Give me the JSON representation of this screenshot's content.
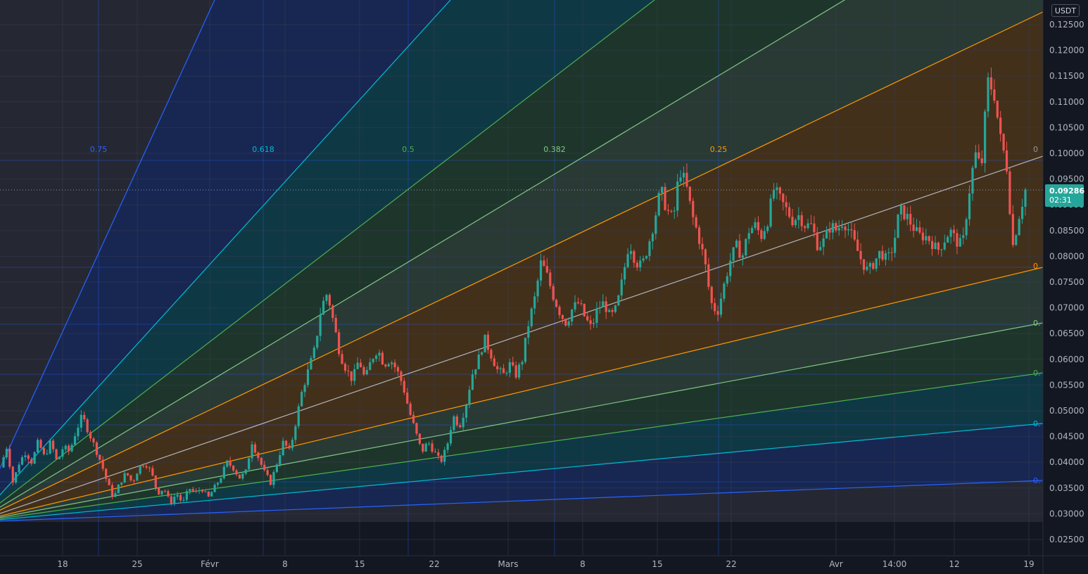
{
  "currency": "USDT",
  "last_price": "0.09286",
  "countdown": "02:31",
  "colors": {
    "background": "#131722",
    "up_candle": "#26a69a",
    "down_candle": "#ef5350",
    "price_badge": "#26a69a",
    "grid": "#2a2e39"
  },
  "chart_data": {
    "type": "candlestick",
    "subtype": "gann-fan-overlay",
    "x_ticks": [
      "18",
      "25",
      "Févr",
      "8",
      "15",
      "22",
      "Mars",
      "8",
      "15",
      "22",
      "Avr",
      "14:00",
      "12",
      "19"
    ],
    "y_ticks": [
      "0.12500",
      "0.12000",
      "0.11500",
      "0.11000",
      "0.10500",
      "0.10000",
      "0.09500",
      "0.09000",
      "0.08500",
      "0.08000",
      "0.07500",
      "0.07000",
      "0.06500",
      "0.06000",
      "0.05500",
      "0.05000",
      "0.04500",
      "0.04000",
      "0.03500",
      "0.03000",
      "0.02500"
    ],
    "ylim": [
      0.0215,
      0.127
    ],
    "fan_levels_upper": [
      {
        "label": "0.75",
        "color": "#2962ff"
      },
      {
        "label": "0.618",
        "color": "#00bcd4"
      },
      {
        "label": "0.5",
        "color": "#4caf50"
      },
      {
        "label": "0.382",
        "color": "#81c784"
      },
      {
        "label": "0.25",
        "color": "#ff9800"
      }
    ],
    "fan_levels_right": [
      {
        "label": "0",
        "color": "#9598a1"
      },
      {
        "label": "0.",
        "color": "#ff9800"
      },
      {
        "label": "0.",
        "color": "#81c784"
      },
      {
        "label": "0.",
        "color": "#4caf50"
      },
      {
        "label": "0.",
        "color": "#00bcd4"
      },
      {
        "label": "0.",
        "color": "#2962ff"
      }
    ],
    "series": [
      {
        "name": "",
        "close_path": [
          [
            0,
            0.039
          ],
          [
            1,
            0.043
          ],
          [
            2,
            0.036
          ],
          [
            3,
            0.04
          ],
          [
            4,
            0.042
          ],
          [
            5,
            0.04
          ],
          [
            6,
            0.044
          ],
          [
            7,
            0.041
          ],
          [
            8,
            0.044
          ],
          [
            9,
            0.04
          ],
          [
            10,
            0.043
          ],
          [
            11,
            0.042
          ],
          [
            12,
            0.046
          ],
          [
            13,
            0.049
          ],
          [
            14,
            0.046
          ],
          [
            15,
            0.043
          ],
          [
            16,
            0.04
          ],
          [
            17,
            0.036
          ],
          [
            18,
            0.033
          ],
          [
            19,
            0.036
          ],
          [
            20,
            0.038
          ],
          [
            21,
            0.036
          ],
          [
            22,
            0.039
          ],
          [
            23,
            0.04
          ],
          [
            24,
            0.038
          ],
          [
            25,
            0.034
          ],
          [
            26,
            0.035
          ],
          [
            27,
            0.032
          ],
          [
            28,
            0.034
          ],
          [
            29,
            0.032
          ],
          [
            30,
            0.035
          ],
          [
            31,
            0.034
          ],
          [
            32,
            0.035
          ],
          [
            33,
            0.033
          ],
          [
            34,
            0.035
          ],
          [
            35,
            0.037
          ],
          [
            36,
            0.04
          ],
          [
            37,
            0.039
          ],
          [
            38,
            0.037
          ],
          [
            39,
            0.038
          ],
          [
            40,
            0.044
          ],
          [
            41,
            0.041
          ],
          [
            42,
            0.038
          ],
          [
            43,
            0.036
          ],
          [
            44,
            0.04
          ],
          [
            45,
            0.044
          ],
          [
            46,
            0.042
          ],
          [
            47,
            0.048
          ],
          [
            48,
            0.054
          ],
          [
            49,
            0.058
          ],
          [
            50,
            0.062
          ],
          [
            51,
            0.07
          ],
          [
            52,
            0.073
          ],
          [
            53,
            0.067
          ],
          [
            54,
            0.061
          ],
          [
            55,
            0.058
          ],
          [
            56,
            0.056
          ],
          [
            57,
            0.06
          ],
          [
            58,
            0.056
          ],
          [
            59,
            0.06
          ],
          [
            60,
            0.062
          ],
          [
            61,
            0.059
          ],
          [
            62,
            0.06
          ],
          [
            63,
            0.058
          ],
          [
            64,
            0.055
          ],
          [
            65,
            0.05
          ],
          [
            66,
            0.046
          ],
          [
            67,
            0.042
          ],
          [
            68,
            0.044
          ],
          [
            69,
            0.042
          ],
          [
            70,
            0.04
          ],
          [
            71,
            0.043
          ],
          [
            72,
            0.049
          ],
          [
            73,
            0.047
          ],
          [
            74,
            0.051
          ],
          [
            75,
            0.057
          ],
          [
            76,
            0.06
          ],
          [
            77,
            0.064
          ],
          [
            78,
            0.061
          ],
          [
            79,
            0.058
          ],
          [
            80,
            0.057
          ],
          [
            81,
            0.059
          ],
          [
            82,
            0.057
          ],
          [
            83,
            0.06
          ],
          [
            84,
            0.067
          ],
          [
            85,
            0.072
          ],
          [
            86,
            0.079
          ],
          [
            87,
            0.076
          ],
          [
            88,
            0.072
          ],
          [
            89,
            0.069
          ],
          [
            90,
            0.067
          ],
          [
            91,
            0.07
          ],
          [
            92,
            0.071
          ],
          [
            93,
            0.068
          ],
          [
            94,
            0.066
          ],
          [
            95,
            0.07
          ],
          [
            96,
            0.071
          ],
          [
            97,
            0.068
          ],
          [
            98,
            0.07
          ],
          [
            99,
            0.076
          ],
          [
            100,
            0.083
          ],
          [
            101,
            0.079
          ],
          [
            102,
            0.078
          ],
          [
            103,
            0.082
          ],
          [
            104,
            0.087
          ],
          [
            105,
            0.093
          ],
          [
            106,
            0.089
          ],
          [
            107,
            0.087
          ],
          [
            108,
            0.097
          ],
          [
            109,
            0.094
          ],
          [
            110,
            0.088
          ],
          [
            111,
            0.084
          ],
          [
            112,
            0.079
          ],
          [
            113,
            0.071
          ],
          [
            114,
            0.069
          ],
          [
            115,
            0.074
          ],
          [
            116,
            0.079
          ],
          [
            117,
            0.082
          ],
          [
            118,
            0.08
          ],
          [
            119,
            0.085
          ],
          [
            120,
            0.086
          ],
          [
            121,
            0.084
          ],
          [
            122,
            0.087
          ],
          [
            123,
            0.093
          ],
          [
            124,
            0.091
          ],
          [
            125,
            0.089
          ],
          [
            126,
            0.087
          ],
          [
            127,
            0.088
          ],
          [
            128,
            0.086
          ],
          [
            129,
            0.086
          ],
          [
            130,
            0.082
          ],
          [
            131,
            0.083
          ],
          [
            132,
            0.086
          ],
          [
            133,
            0.085
          ],
          [
            134,
            0.087
          ],
          [
            135,
            0.085
          ],
          [
            136,
            0.082
          ],
          [
            137,
            0.079
          ],
          [
            138,
            0.077
          ],
          [
            139,
            0.079
          ],
          [
            140,
            0.081
          ],
          [
            141,
            0.079
          ],
          [
            142,
            0.082
          ],
          [
            143,
            0.089
          ],
          [
            144,
            0.088
          ],
          [
            145,
            0.086
          ],
          [
            146,
            0.084
          ],
          [
            147,
            0.084
          ],
          [
            148,
            0.083
          ],
          [
            149,
            0.081
          ],
          [
            150,
            0.083
          ],
          [
            151,
            0.085
          ],
          [
            152,
            0.083
          ],
          [
            153,
            0.082
          ],
          [
            154,
            0.092
          ],
          [
            155,
            0.1
          ],
          [
            156,
            0.097
          ],
          [
            157,
            0.114
          ],
          [
            158,
            0.112
          ],
          [
            159,
            0.103
          ],
          [
            160,
            0.098
          ],
          [
            161,
            0.082
          ],
          [
            162,
            0.088
          ],
          [
            163,
            0.0929
          ]
        ]
      }
    ],
    "grid": true
  }
}
